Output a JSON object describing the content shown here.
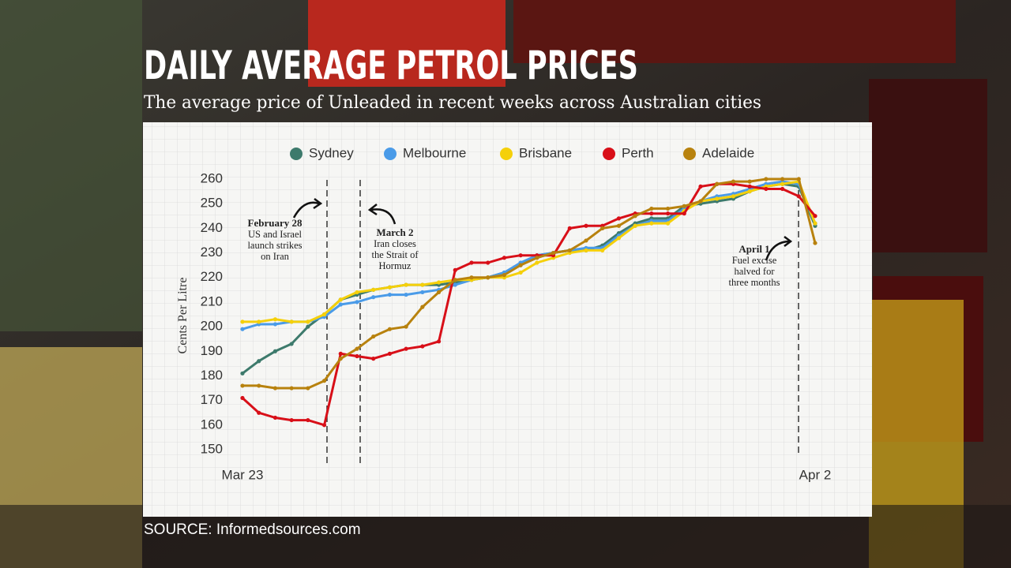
{
  "chart_data": {
    "type": "line",
    "title": "DAILY AVERAGE PETROL PRICES",
    "subtitle": "The average price of Unleaded in recent weeks across Australian cities",
    "source": "SOURCE: Informedsources.com",
    "y_label": "Cents Per Litre",
    "categories": [
      "Mar 23",
      null,
      null,
      null,
      null,
      null,
      null,
      null,
      null,
      null,
      null,
      null,
      null,
      null,
      null,
      null,
      null,
      null,
      null,
      null,
      null,
      null,
      null,
      null,
      null,
      null,
      null,
      null,
      null,
      null,
      null,
      null,
      null,
      null,
      null,
      "Apr 2"
    ],
    "ylim": [
      150,
      260
    ],
    "yticks": [
      150,
      160,
      170,
      180,
      190,
      200,
      210,
      220,
      230,
      240,
      250,
      260
    ],
    "grid": false,
    "legend": "top",
    "series": [
      {
        "name": "Sydney",
        "color": "#3d7a6c",
        "values": [
          181,
          186,
          190,
          193,
          200,
          205,
          211,
          213,
          215,
          216,
          217,
          217,
          217,
          218,
          219,
          220,
          222,
          225,
          229,
          230,
          231,
          231,
          233,
          238,
          242,
          244,
          244,
          249,
          250,
          251,
          252,
          255,
          257,
          258,
          257,
          241
        ]
      },
      {
        "name": "Melbourne",
        "color": "#4a9be8",
        "values": [
          199,
          201,
          201,
          202,
          202,
          204,
          209,
          210,
          212,
          213,
          213,
          214,
          215,
          217,
          219,
          220,
          222,
          226,
          229,
          230,
          231,
          232,
          232,
          237,
          241,
          243,
          243,
          248,
          251,
          253,
          254,
          256,
          258,
          259,
          258,
          242
        ]
      },
      {
        "name": "Brisbane",
        "color": "#f5d00a",
        "values": [
          202,
          202,
          203,
          202,
          202,
          205,
          211,
          214,
          215,
          216,
          217,
          217,
          218,
          219,
          219,
          220,
          220,
          222,
          226,
          228,
          230,
          231,
          231,
          236,
          241,
          242,
          242,
          247,
          251,
          252,
          253,
          255,
          257,
          258,
          259,
          242
        ]
      },
      {
        "name": "Perth",
        "color": "#d80f18",
        "values": [
          171,
          165,
          163,
          162,
          162,
          160,
          189,
          188,
          187,
          189,
          191,
          192,
          194,
          223,
          226,
          226,
          228,
          229,
          229,
          229,
          240,
          241,
          241,
          244,
          246,
          246,
          246,
          246,
          257,
          258,
          258,
          257,
          256,
          256,
          253,
          245
        ]
      },
      {
        "name": "Adelaide",
        "color": "#b8820e",
        "values": [
          176,
          176,
          175,
          175,
          175,
          178,
          187,
          191,
          196,
          199,
          200,
          208,
          214,
          219,
          220,
          220,
          221,
          225,
          228,
          230,
          231,
          235,
          240,
          241,
          245,
          248,
          248,
          249,
          251,
          258,
          259,
          259,
          260,
          260,
          260,
          234
        ]
      }
    ],
    "annotations": [
      {
        "title": "February 28",
        "lines": [
          "US and Israel",
          "launch strikes",
          "on Iran"
        ]
      },
      {
        "title": "March 2",
        "lines": [
          "Iran closes",
          "the Strait of",
          "Hormuz"
        ]
      },
      {
        "title": "April 1",
        "lines": [
          "Fuel excise",
          "halved for",
          "three months"
        ]
      }
    ]
  }
}
